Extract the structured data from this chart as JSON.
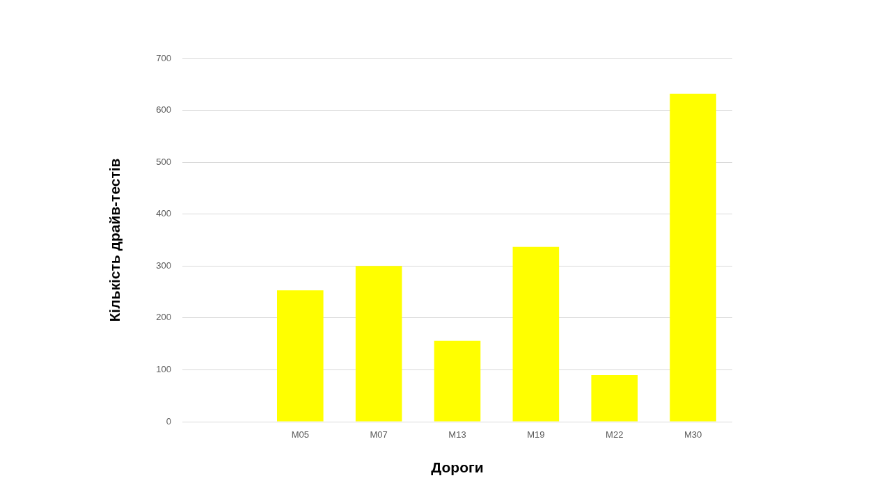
{
  "chart_data": {
    "type": "bar",
    "xlabel": "Дороги",
    "ylabel": "Кількість драйв-тестів",
    "categories": [
      null,
      "M05",
      "M07",
      "M13",
      "M19",
      "M22",
      "M30"
    ],
    "values": [
      null,
      253,
      300,
      156,
      337,
      90,
      632
    ],
    "color": "#ffff00",
    "ylim": [
      0,
      700
    ],
    "yticks": [
      0,
      100,
      200,
      300,
      400,
      500,
      600,
      700
    ],
    "grid": "y"
  }
}
